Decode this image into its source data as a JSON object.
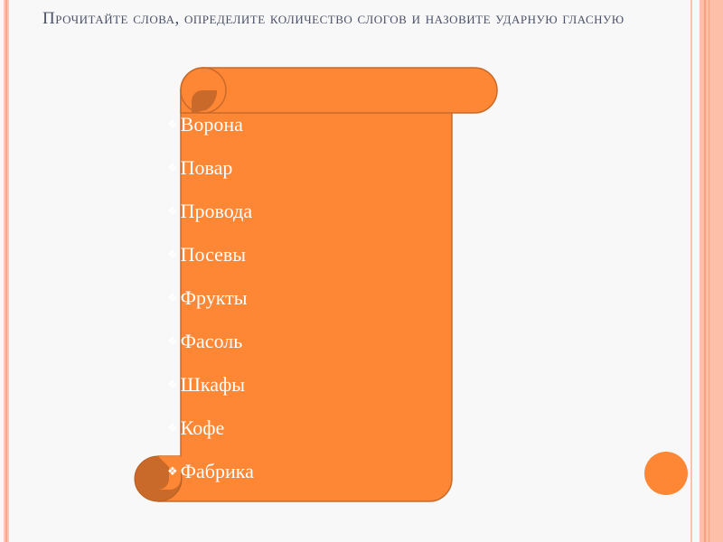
{
  "slide": {
    "title": "Прочитайте слова, определите количество слогов и назовите ударную гласную",
    "bullet_icon": "diamond-bullet-icon",
    "words": [
      "Ворона",
      "Повар",
      "Провода",
      "Посевы",
      "Фрукты",
      "Фасоль",
      "Шкафы",
      "Кофе",
      "Фабрика"
    ]
  },
  "colors": {
    "scroll": "#fe8736",
    "scroll_shadow": "#c96a2a",
    "title": "#4a5068",
    "border": "#fbbfa6"
  }
}
